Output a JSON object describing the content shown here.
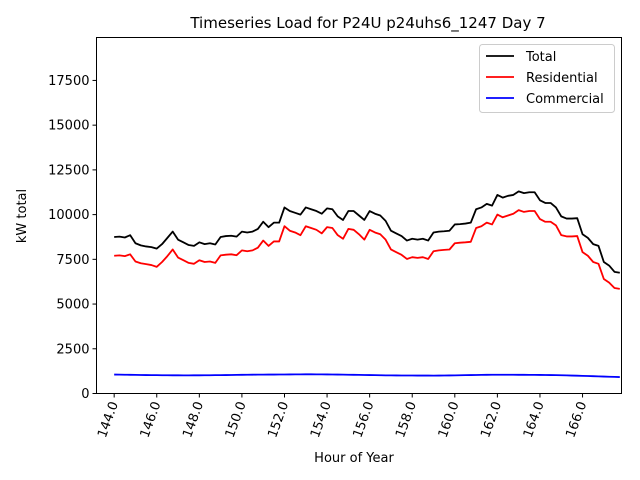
{
  "chart_data": {
    "type": "line",
    "title": "Timeseries Load for P24U p24uhs6_1247  Day 7",
    "xlabel": "Hour of Year",
    "ylabel": "kW total",
    "xlim": [
      143.17,
      167.83
    ],
    "ylim": [
      0,
      19900
    ],
    "x_ticks": [
      144,
      146,
      148,
      150,
      152,
      154,
      156,
      158,
      160,
      162,
      164,
      166
    ],
    "x_tick_labels": [
      "144.0",
      "146.0",
      "148.0",
      "150.0",
      "152.0",
      "154.0",
      "156.0",
      "158.0",
      "160.0",
      "162.0",
      "164.0",
      "166.0"
    ],
    "y_ticks": [
      0,
      2500,
      5000,
      7500,
      10000,
      12500,
      15000,
      17500
    ],
    "y_tick_labels": [
      "0",
      "2500",
      "5000",
      "7500",
      "10000",
      "12500",
      "15000",
      "17500"
    ],
    "grid": false,
    "legend_position": "top-right",
    "x": [
      144.0,
      144.25,
      144.5,
      144.75,
      145.0,
      145.25,
      145.5,
      145.75,
      146.0,
      146.25,
      146.5,
      146.75,
      147.0,
      147.25,
      147.5,
      147.75,
      148.0,
      148.25,
      148.5,
      148.75,
      149.0,
      149.25,
      149.5,
      149.75,
      150.0,
      150.25,
      150.5,
      150.75,
      151.0,
      151.25,
      151.5,
      151.75,
      152.0,
      152.25,
      152.5,
      152.75,
      153.0,
      153.25,
      153.5,
      153.75,
      154.0,
      154.25,
      154.5,
      154.75,
      155.0,
      155.25,
      155.5,
      155.75,
      156.0,
      156.25,
      156.5,
      156.75,
      157.0,
      157.25,
      157.5,
      157.75,
      158.0,
      158.25,
      158.5,
      158.75,
      159.0,
      159.25,
      159.5,
      159.75,
      160.0,
      160.25,
      160.5,
      160.75,
      161.0,
      161.25,
      161.5,
      161.75,
      162.0,
      162.25,
      162.5,
      162.75,
      163.0,
      163.25,
      163.5,
      163.75,
      164.0,
      164.25,
      164.5,
      164.75,
      165.0,
      165.25,
      165.5,
      165.75,
      166.0,
      166.25,
      166.5,
      166.75,
      167.0,
      167.25,
      167.5,
      167.75
    ],
    "series": [
      {
        "name": "Total",
        "color": "#000000",
        "values": [
          8750,
          8770,
          8720,
          8850,
          8400,
          8280,
          8220,
          8180,
          8100,
          8350,
          8700,
          9050,
          8600,
          8450,
          8300,
          8250,
          8450,
          8350,
          8400,
          8330,
          8750,
          8800,
          8820,
          8770,
          9050,
          9000,
          9050,
          9200,
          9600,
          9300,
          9550,
          9550,
          10400,
          10200,
          10100,
          10000,
          10400,
          10300,
          10200,
          10050,
          10350,
          10300,
          9900,
          9700,
          10200,
          10200,
          9950,
          9700,
          10200,
          10050,
          9950,
          9650,
          9100,
          8950,
          8800,
          8550,
          8650,
          8600,
          8650,
          8550,
          9000,
          9050,
          9070,
          9100,
          9450,
          9470,
          9500,
          9550,
          10300,
          10400,
          10600,
          10500,
          11100,
          10950,
          11050,
          11100,
          11300,
          11200,
          11250,
          11250,
          10800,
          10650,
          10650,
          10400,
          9900,
          9780,
          9780,
          9800,
          8900,
          8700,
          8350,
          8250,
          7350,
          7150,
          6800,
          6750
        ]
      },
      {
        "name": "Residential",
        "color": "#ff0000",
        "values": [
          7700,
          7720,
          7680,
          7780,
          7380,
          7280,
          7230,
          7180,
          7080,
          7350,
          7680,
          8050,
          7600,
          7450,
          7300,
          7250,
          7450,
          7350,
          7380,
          7300,
          7720,
          7760,
          7780,
          7730,
          8000,
          7950,
          8000,
          8150,
          8550,
          8250,
          8500,
          8500,
          9350,
          9100,
          9000,
          8850,
          9350,
          9250,
          9150,
          8950,
          9300,
          9250,
          8850,
          8650,
          9200,
          9150,
          8900,
          8600,
          9150,
          9000,
          8900,
          8600,
          8050,
          7900,
          7750,
          7520,
          7620,
          7580,
          7620,
          7520,
          7950,
          8000,
          8030,
          8050,
          8400,
          8430,
          8450,
          8480,
          9250,
          9350,
          9550,
          9450,
          10000,
          9850,
          9950,
          10050,
          10250,
          10150,
          10200,
          10200,
          9750,
          9600,
          9600,
          9400,
          8850,
          8780,
          8780,
          8800,
          7900,
          7700,
          7350,
          7250,
          6400,
          6200,
          5900,
          5850
        ]
      },
      {
        "name": "Commercial",
        "color": "#0000ff",
        "values": [
          1060,
          1055,
          1050,
          1045,
          1040,
          1035,
          1030,
          1028,
          1025,
          1022,
          1020,
          1018,
          1016,
          1015,
          1015,
          1016,
          1018,
          1020,
          1022,
          1025,
          1028,
          1032,
          1036,
          1040,
          1045,
          1050,
          1052,
          1054,
          1056,
          1058,
          1060,
          1062,
          1064,
          1066,
          1068,
          1070,
          1072,
          1072,
          1070,
          1068,
          1066,
          1062,
          1058,
          1055,
          1050,
          1045,
          1040,
          1035,
          1030,
          1025,
          1020,
          1015,
          1012,
          1010,
          1008,
          1006,
          1005,
          1004,
          1003,
          1002,
          1001,
          1002,
          1005,
          1010,
          1015,
          1020,
          1025,
          1030,
          1035,
          1040,
          1045,
          1048,
          1050,
          1050,
          1049,
          1048,
          1046,
          1044,
          1042,
          1040,
          1037,
          1034,
          1030,
          1025,
          1020,
          1012,
          1004,
          996,
          987,
          978,
          968,
          958,
          948,
          938,
          928,
          918
        ]
      }
    ]
  }
}
